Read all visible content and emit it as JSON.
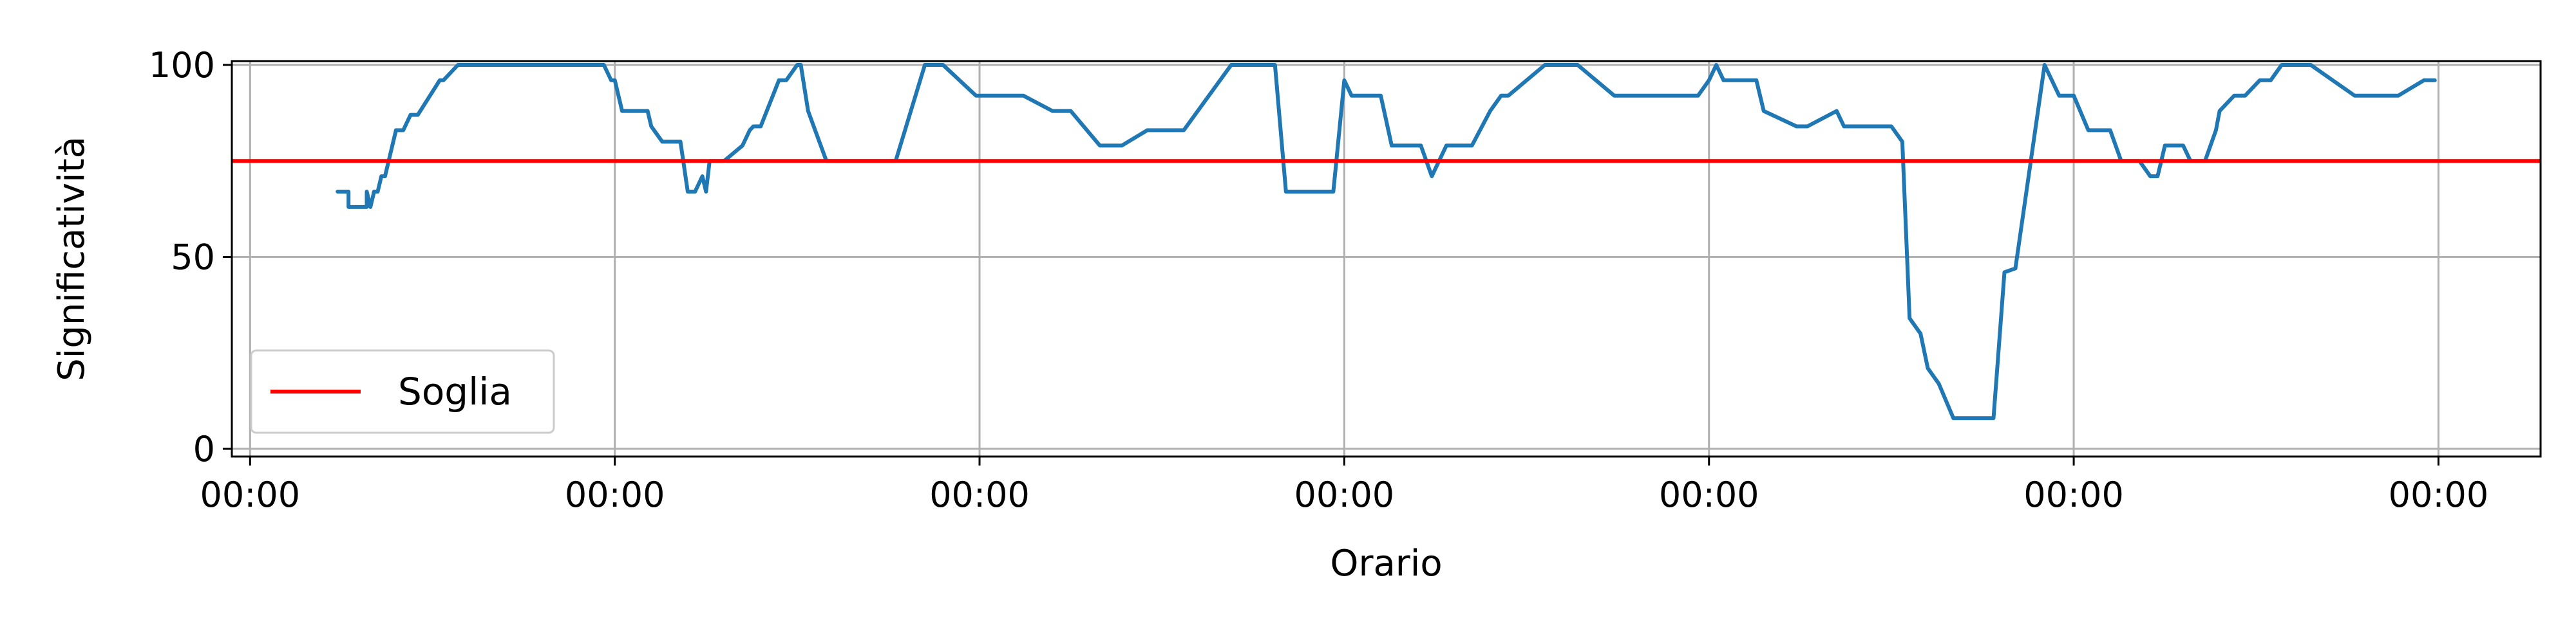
{
  "chart_data": {
    "type": "line",
    "xlabel": "Orario",
    "ylabel": "Significatività",
    "xlim": [
      -0.05,
      6.28
    ],
    "ylim": [
      -2,
      101
    ],
    "x_ticks": [
      0,
      1,
      2,
      3,
      4,
      5,
      6
    ],
    "x_tick_labels": [
      "00:00",
      "00:00",
      "00:00",
      "00:00",
      "00:00",
      "00:00",
      "00:00"
    ],
    "y_ticks": [
      0,
      50,
      100
    ],
    "y_tick_labels": [
      "0",
      "50",
      "100"
    ],
    "grid": true,
    "legend": {
      "position": "lower-left",
      "entries": [
        "Soglia"
      ]
    },
    "threshold": {
      "name": "Soglia",
      "value": 75,
      "color": "#ff0000"
    },
    "series": [
      {
        "color": "#1f77b4",
        "x": [
          0.24,
          0.27,
          0.27,
          0.32,
          0.32,
          0.33,
          0.34,
          0.35,
          0.36,
          0.37,
          0.38,
          0.39,
          0.4,
          0.42,
          0.44,
          0.46,
          0.52,
          0.53,
          0.57,
          0.59,
          0.75,
          0.97,
          0.99,
          1.0,
          1.02,
          1.09,
          1.1,
          1.13,
          1.18,
          1.2,
          1.22,
          1.24,
          1.25,
          1.26,
          1.27,
          1.28,
          1.3,
          1.35,
          1.37,
          1.38,
          1.4,
          1.45,
          1.47,
          1.5,
          1.51,
          1.53,
          1.58,
          1.68,
          1.77,
          1.85,
          1.9,
          1.99,
          2.12,
          2.2,
          2.25,
          2.33,
          2.35,
          2.39,
          2.46,
          2.5,
          2.56,
          2.69,
          2.72,
          2.81,
          2.84,
          2.86,
          2.93,
          2.97,
          3.0,
          3.02,
          3.1,
          3.13,
          3.14,
          3.21,
          3.24,
          3.28,
          3.35,
          3.4,
          3.43,
          3.45,
          3.55,
          3.57,
          3.64,
          3.74,
          3.82,
          3.97,
          4.0,
          4.02,
          4.04,
          4.12,
          4.13,
          4.15,
          4.24,
          4.25,
          4.27,
          4.35,
          4.37,
          4.4,
          4.5,
          4.53,
          4.55,
          4.58,
          4.6,
          4.63,
          4.67,
          4.7,
          4.74,
          4.78,
          4.81,
          4.84,
          4.92,
          4.96,
          4.98,
          5.0,
          5.04,
          5.1,
          5.13,
          5.18,
          5.21,
          5.23,
          5.25,
          5.3,
          5.32,
          5.36,
          5.39,
          5.4,
          5.44,
          5.47,
          5.51,
          5.54,
          5.57,
          5.63,
          5.65,
          5.71,
          5.77,
          5.81,
          5.84,
          5.89,
          5.96,
          5.99
        ],
        "y": [
          67,
          67,
          63,
          63,
          67,
          63,
          67,
          67,
          71,
          71,
          75,
          79,
          83,
          83,
          87,
          87,
          96,
          96,
          100,
          100,
          100,
          100,
          96,
          96,
          88,
          88,
          84,
          80,
          80,
          67,
          67,
          71,
          67,
          75,
          75,
          75,
          75,
          79,
          83,
          84,
          84,
          96,
          96,
          100,
          100,
          88,
          75,
          75,
          75,
          100,
          100,
          92,
          92,
          88,
          88,
          79,
          79,
          79,
          83,
          83,
          83,
          100,
          100,
          100,
          67,
          67,
          67,
          67,
          96,
          92,
          92,
          79,
          79,
          79,
          71,
          79,
          79,
          88,
          92,
          92,
          100,
          100,
          100,
          92,
          92,
          92,
          96,
          100,
          96,
          96,
          96,
          88,
          84,
          84,
          84,
          88,
          84,
          84,
          84,
          80,
          34,
          30,
          21,
          17,
          8,
          8,
          8,
          8,
          46,
          47,
          100,
          92,
          92,
          92,
          83,
          83,
          75,
          75,
          71,
          71,
          79,
          79,
          75,
          75,
          83,
          88,
          92,
          92,
          96,
          96,
          100,
          100,
          100,
          96,
          92,
          92,
          92,
          92,
          96,
          96
        ]
      }
    ]
  }
}
